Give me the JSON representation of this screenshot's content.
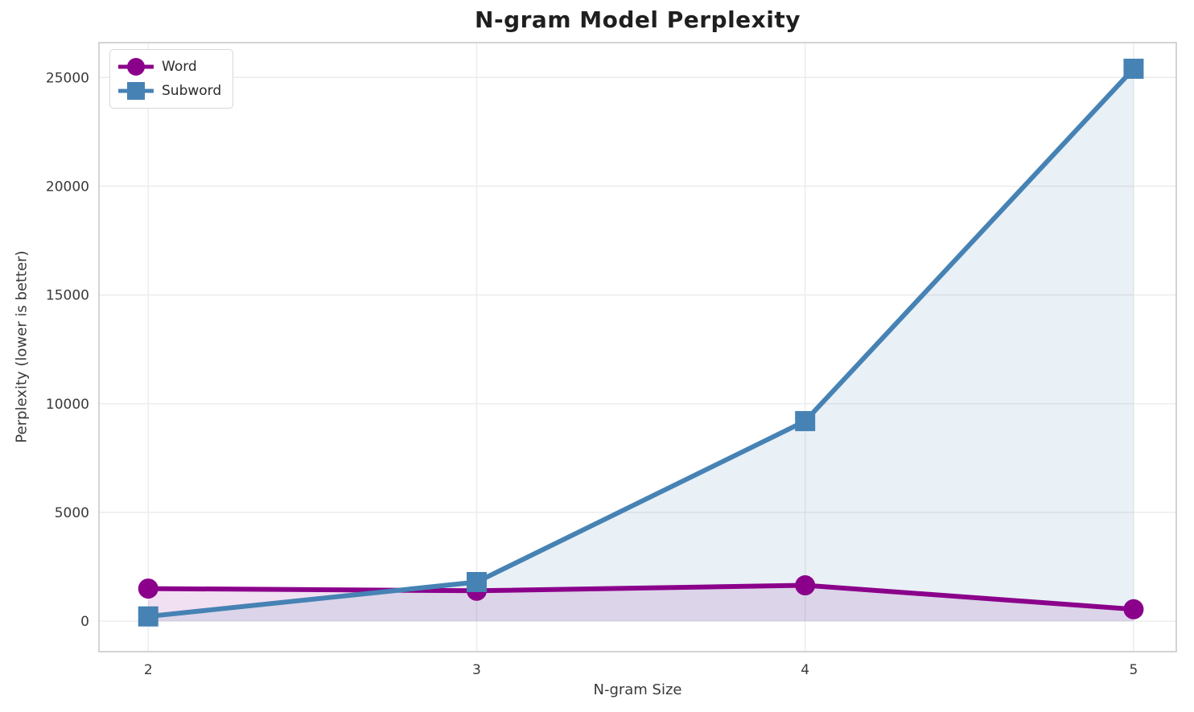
{
  "chart_data": {
    "type": "line",
    "title": "N-gram Model Perplexity",
    "xlabel": "N-gram Size",
    "ylabel": "Perplexity (lower is better)",
    "x": [
      2,
      3,
      4,
      5
    ],
    "series": [
      {
        "name": "Word",
        "color": "#8B008B",
        "marker": "circle",
        "values": [
          1500,
          1400,
          1650,
          550
        ]
      },
      {
        "name": "Subword",
        "color": "#4682B4",
        "marker": "square",
        "values": [
          220,
          1800,
          9200,
          25400
        ]
      }
    ],
    "xticks": [
      2,
      3,
      4,
      5
    ],
    "yticks": [
      0,
      5000,
      10000,
      15000,
      20000,
      25000
    ],
    "xlim": [
      1.85,
      5.13
    ],
    "ylim": [
      -1400,
      26600
    ],
    "grid": true,
    "legend_position": "upper-left",
    "area_fill_opacity": 0.12,
    "line_width": 6,
    "grid_color": "#ebebeb",
    "spine_color": "#c9c9c9",
    "tick_color": "#3a3a3a",
    "title_color": "#1f1f1f"
  }
}
